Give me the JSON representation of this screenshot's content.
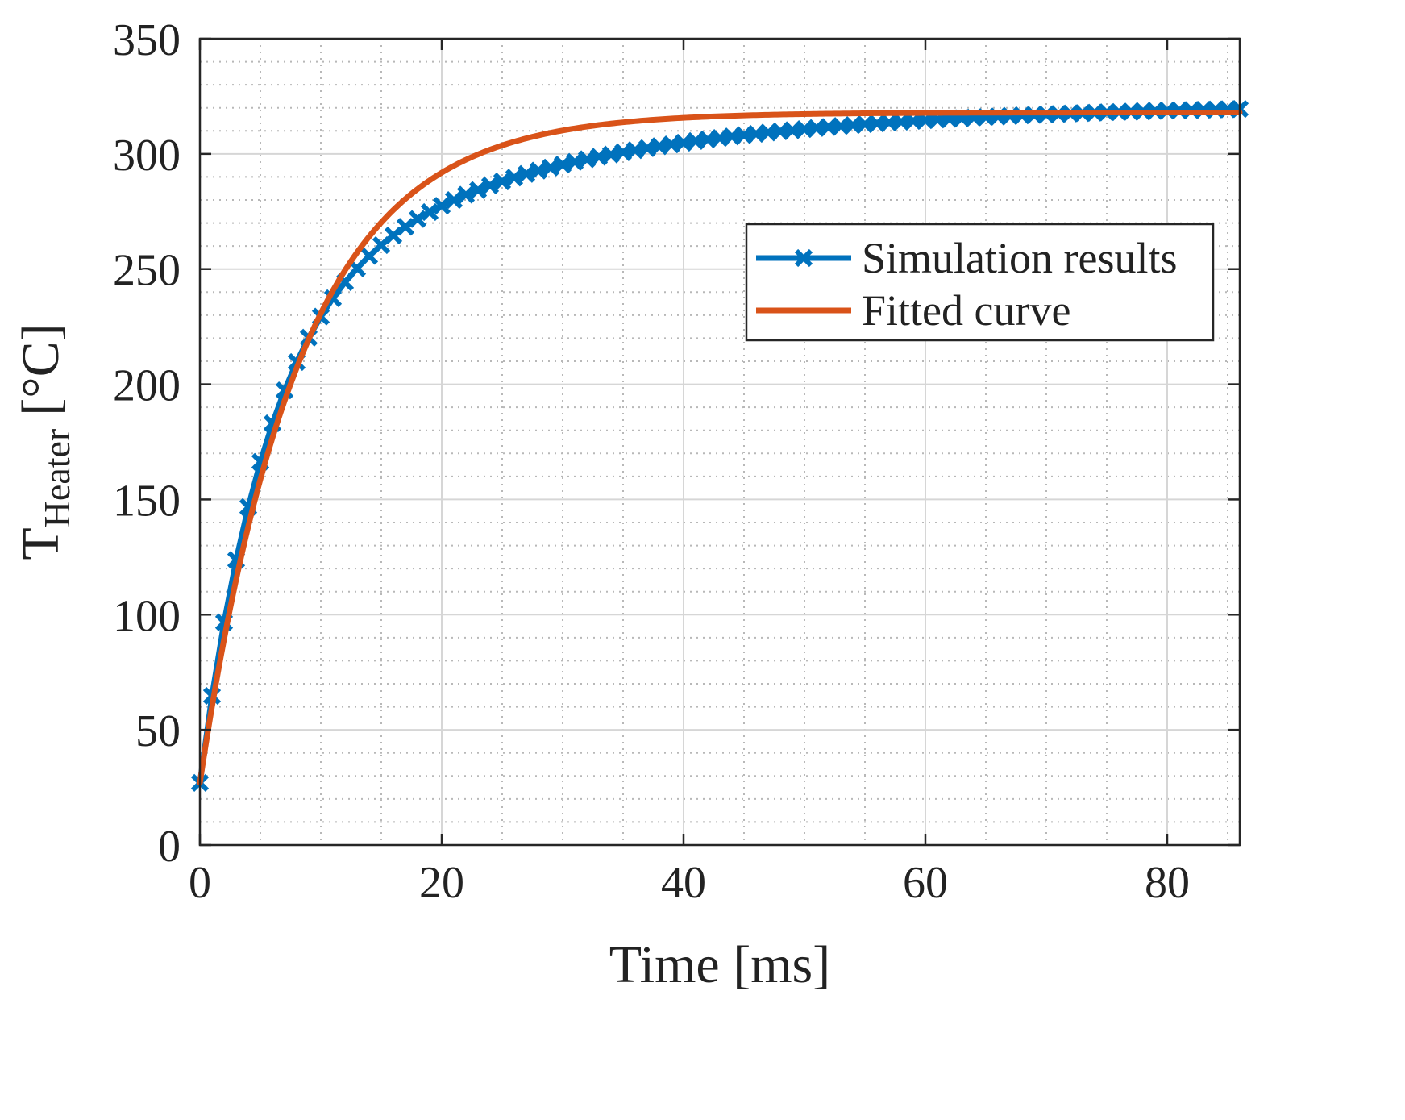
{
  "chart_data": {
    "type": "line",
    "title": "",
    "xlabel": "Time [ms]",
    "ylabel": {
      "main": "T",
      "subscript": "Heater",
      "unit": "[°C]"
    },
    "xlim": [
      0,
      86
    ],
    "ylim": [
      0,
      350
    ],
    "xticks": [
      0,
      20,
      40,
      60,
      80
    ],
    "yticks": [
      0,
      50,
      100,
      150,
      200,
      250,
      300,
      350
    ],
    "xtick_labels": [
      "0",
      "20",
      "40",
      "60",
      "80"
    ],
    "ytick_labels": [
      "0",
      "50",
      "100",
      "150",
      "200",
      "250",
      "300",
      "350"
    ],
    "x_minor_step": 5,
    "y_minor_step": 10,
    "grid": true,
    "legend_position": "upper-right",
    "series": [
      {
        "name": "Simulation results",
        "color": "#0072BD",
        "marker": "x",
        "model": {
          "kind": "double_exponential",
          "t0": 27,
          "a1": 205,
          "tau1": 5.5,
          "a2": 90,
          "tau2": 24
        },
        "x_start": 0,
        "x_end": 86,
        "x_step": 1
      },
      {
        "name": "Fitted curve",
        "color": "#D95319",
        "marker": "none",
        "model": {
          "kind": "exponential",
          "t0": 27,
          "tinf": 318,
          "tau": 8.3
        },
        "x_start": 0,
        "x_end": 86,
        "x_step": 0.25
      }
    ]
  }
}
